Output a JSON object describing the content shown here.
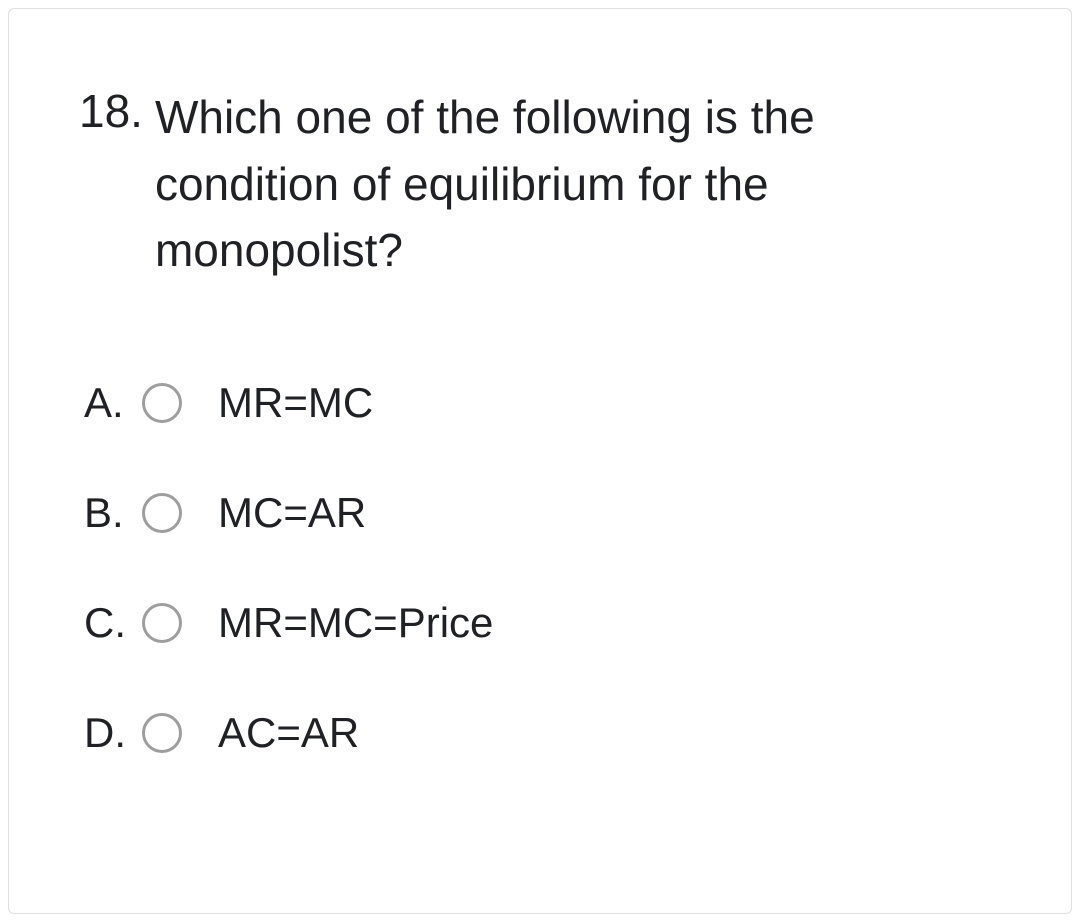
{
  "question": {
    "number": "18.",
    "text": "Which one of the following is the condition of equilibrium for the monopolist?"
  },
  "options": [
    {
      "letter": "A.",
      "text": "MR=MC"
    },
    {
      "letter": "B.",
      "text": "MC=AR"
    },
    {
      "letter": "C.",
      "text": "MR=MC=Price"
    },
    {
      "letter": "D.",
      "text": "AC=AR"
    }
  ],
  "colors": {
    "text": "#202124",
    "border": "#e0e0e0",
    "radio_border": "#9e9e9e",
    "background": "#ffffff"
  },
  "typography": {
    "question_fontsize": 46,
    "option_fontsize": 42,
    "font_family": "Arial"
  }
}
